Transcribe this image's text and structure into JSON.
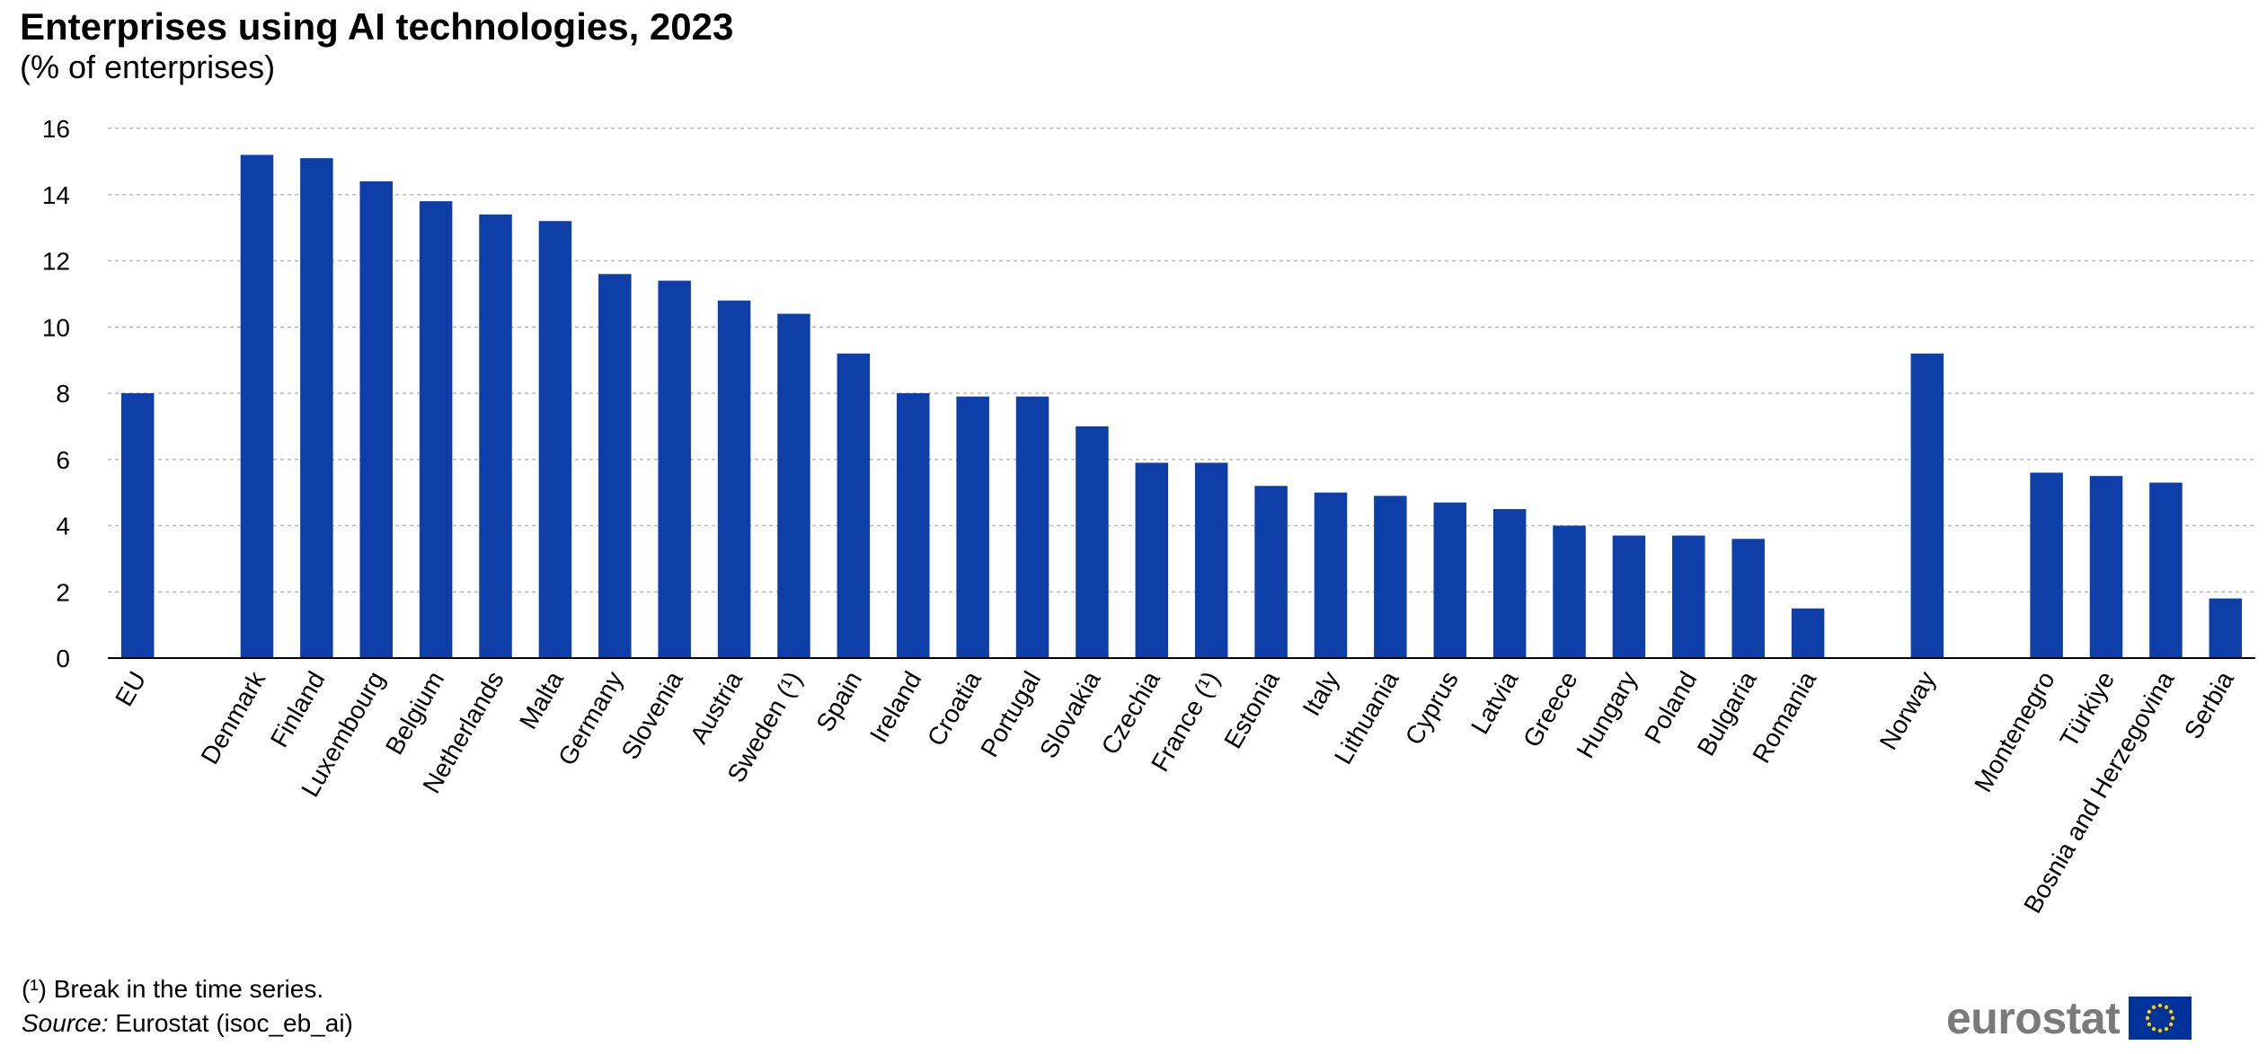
{
  "chart_data": {
    "type": "bar",
    "title": "Enterprises using AI technologies, 2023",
    "subtitle": "(% of enterprises)",
    "categories": [
      "EU",
      "Denmark",
      "Finland",
      "Luxembourg",
      "Belgium",
      "Netherlands",
      "Malta",
      "Germany",
      "Slovenia",
      "Austria",
      "Sweden (¹)",
      "Spain",
      "Ireland",
      "Croatia",
      "Portugal",
      "Slovakia",
      "Czechia",
      "France (¹)",
      "Estonia",
      "Italy",
      "Lithuania",
      "Cyprus",
      "Latvia",
      "Greece",
      "Hungary",
      "Poland",
      "Bulgaria",
      "Romania",
      "Norway",
      "Montenegro",
      "Türkiye",
      "Bosnia and Herzegovina",
      "Serbia"
    ],
    "values": [
      8.0,
      15.2,
      15.1,
      14.4,
      13.8,
      13.4,
      13.2,
      11.6,
      11.4,
      10.8,
      10.4,
      9.2,
      8.0,
      7.9,
      7.9,
      7.0,
      5.9,
      5.9,
      5.2,
      5.0,
      4.9,
      4.7,
      4.5,
      4.0,
      3.7,
      3.7,
      3.6,
      1.5,
      9.2,
      5.6,
      5.5,
      5.3,
      1.8
    ],
    "ylim": [
      0,
      16
    ],
    "yticks": [
      0,
      2,
      4,
      6,
      8,
      10,
      12,
      14,
      16
    ],
    "grid": true,
    "bar_color": "#0e3fa8",
    "xlabel": "",
    "ylabel": ""
  },
  "footnote": "(¹) Break in the time series.",
  "source": {
    "label": "Source:",
    "text": " Eurostat (isoc_eb_ai)"
  },
  "logo": {
    "text": "eurostat",
    "flag_color": "#003399",
    "star_color": "#ffcc00"
  }
}
